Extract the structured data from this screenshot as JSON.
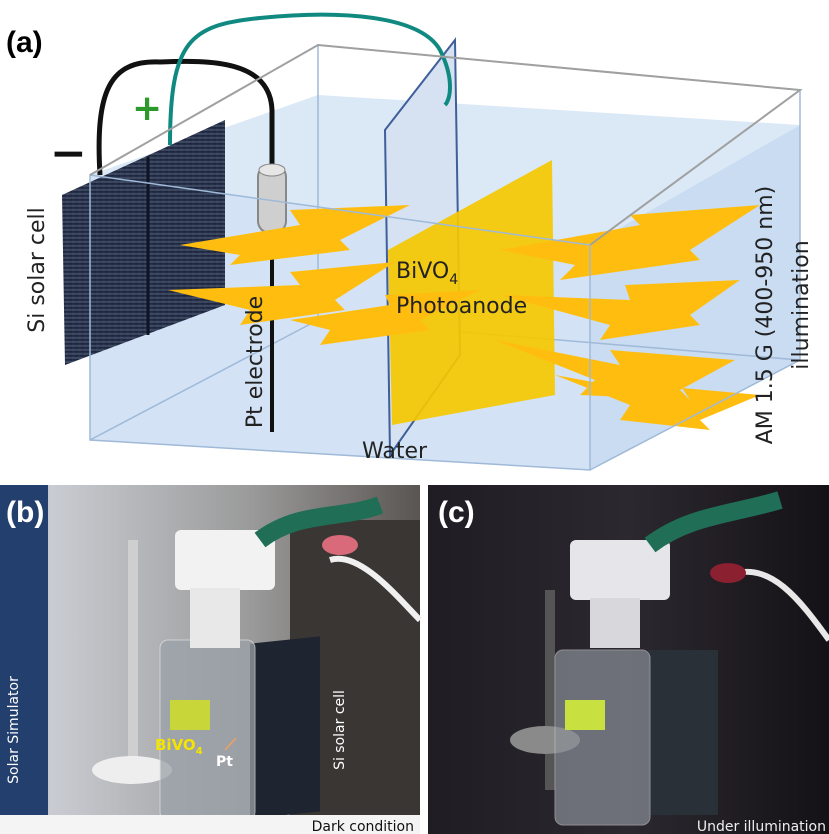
{
  "panel_a": {
    "label": "(a)",
    "minus": "−",
    "plus": "+",
    "si_cell": "Si solar cell",
    "pt_electrode": "Pt electrode",
    "bivo4": {
      "main": "BiVO",
      "sub": "4"
    },
    "photoanode": "Photoanode",
    "water": "Water",
    "illumination_line1": "AM 1.5 G (400-950 nm)",
    "illumination_line2": "illumination"
  },
  "panel_b": {
    "label": "(b)",
    "solar_simulator": "Solar Simulator",
    "si_cell": "Si solar cell",
    "bivo4": {
      "main": "BiVO",
      "sub": "4"
    },
    "pt": "Pt",
    "condition": "Dark condition"
  },
  "panel_c": {
    "label": "(c)",
    "condition": "Under illumination"
  }
}
